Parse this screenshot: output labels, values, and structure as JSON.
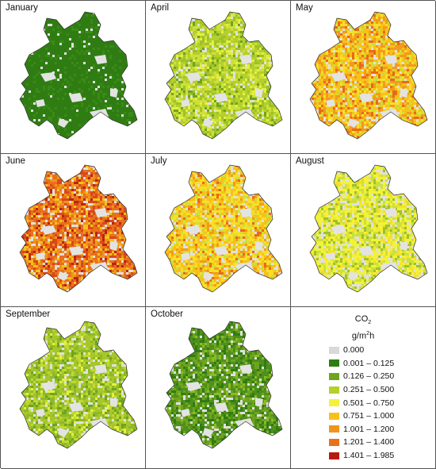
{
  "panels": [
    {
      "title": "January",
      "palette": [
        "#2f7d12",
        "#2f7d12",
        "#3a8a18",
        "#2f7d12",
        "#e0e0e0"
      ],
      "weights": [
        0.55,
        0.2,
        0.15,
        0.05,
        0.05
      ]
    },
    {
      "title": "April",
      "palette": [
        "#b5cf2c",
        "#cde03a",
        "#9cc22a",
        "#e6ef3e",
        "#6fa41f",
        "#e0e0e0"
      ],
      "weights": [
        0.32,
        0.22,
        0.18,
        0.12,
        0.08,
        0.08
      ]
    },
    {
      "title": "May",
      "palette": [
        "#f6c21a",
        "#f39a1c",
        "#f7e02a",
        "#e86a18",
        "#cbe03a",
        "#e0e0e0"
      ],
      "weights": [
        0.3,
        0.24,
        0.16,
        0.12,
        0.1,
        0.08
      ]
    },
    {
      "title": "June",
      "palette": [
        "#e8701a",
        "#f0941e",
        "#d9481a",
        "#f6c21a",
        "#b82510",
        "#e0e0e0"
      ],
      "weights": [
        0.3,
        0.22,
        0.18,
        0.12,
        0.08,
        0.1
      ]
    },
    {
      "title": "July",
      "palette": [
        "#f7e02a",
        "#f6c21a",
        "#f39a1c",
        "#cde03a",
        "#e86a18",
        "#e0e0e0"
      ],
      "weights": [
        0.32,
        0.26,
        0.14,
        0.12,
        0.06,
        0.1
      ]
    },
    {
      "title": "August",
      "palette": [
        "#f2f23a",
        "#cde03a",
        "#e0e0e0",
        "#9cc22a",
        "#f7e02a"
      ],
      "weights": [
        0.34,
        0.24,
        0.16,
        0.14,
        0.12
      ]
    },
    {
      "title": "September",
      "palette": [
        "#a6c62c",
        "#8dba28",
        "#c2d832",
        "#6fa41f",
        "#e6ef3e",
        "#e0e0e0"
      ],
      "weights": [
        0.32,
        0.24,
        0.16,
        0.12,
        0.06,
        0.1
      ]
    },
    {
      "title": "October",
      "palette": [
        "#4f8f1c",
        "#6fa41f",
        "#2f7d12",
        "#8dba28",
        "#e0e0e0"
      ],
      "weights": [
        0.34,
        0.26,
        0.2,
        0.1,
        0.1
      ]
    }
  ],
  "legend": {
    "title_main": "CO",
    "title_sub": "2",
    "unit_main": "g/m",
    "unit_sup": "2",
    "unit_tail": "h",
    "items": [
      {
        "label": "0.000",
        "color": "#d9d9d9"
      },
      {
        "label": "0.001 – 0.125",
        "color": "#2f7d12"
      },
      {
        "label": "0.126 – 0.250",
        "color": "#6fa41f"
      },
      {
        "label": "0.251 – 0.500",
        "color": "#b5cf2c"
      },
      {
        "label": "0.501 – 0.750",
        "color": "#f2f23a"
      },
      {
        "label": "0.751 – 1.000",
        "color": "#f6c21a"
      },
      {
        "label": "1.001 – 1.200",
        "color": "#f0941e"
      },
      {
        "label": "1.201 – 1.400",
        "color": "#e8701a"
      },
      {
        "label": "1.401 – 1.985",
        "color": "#b81810"
      }
    ]
  }
}
